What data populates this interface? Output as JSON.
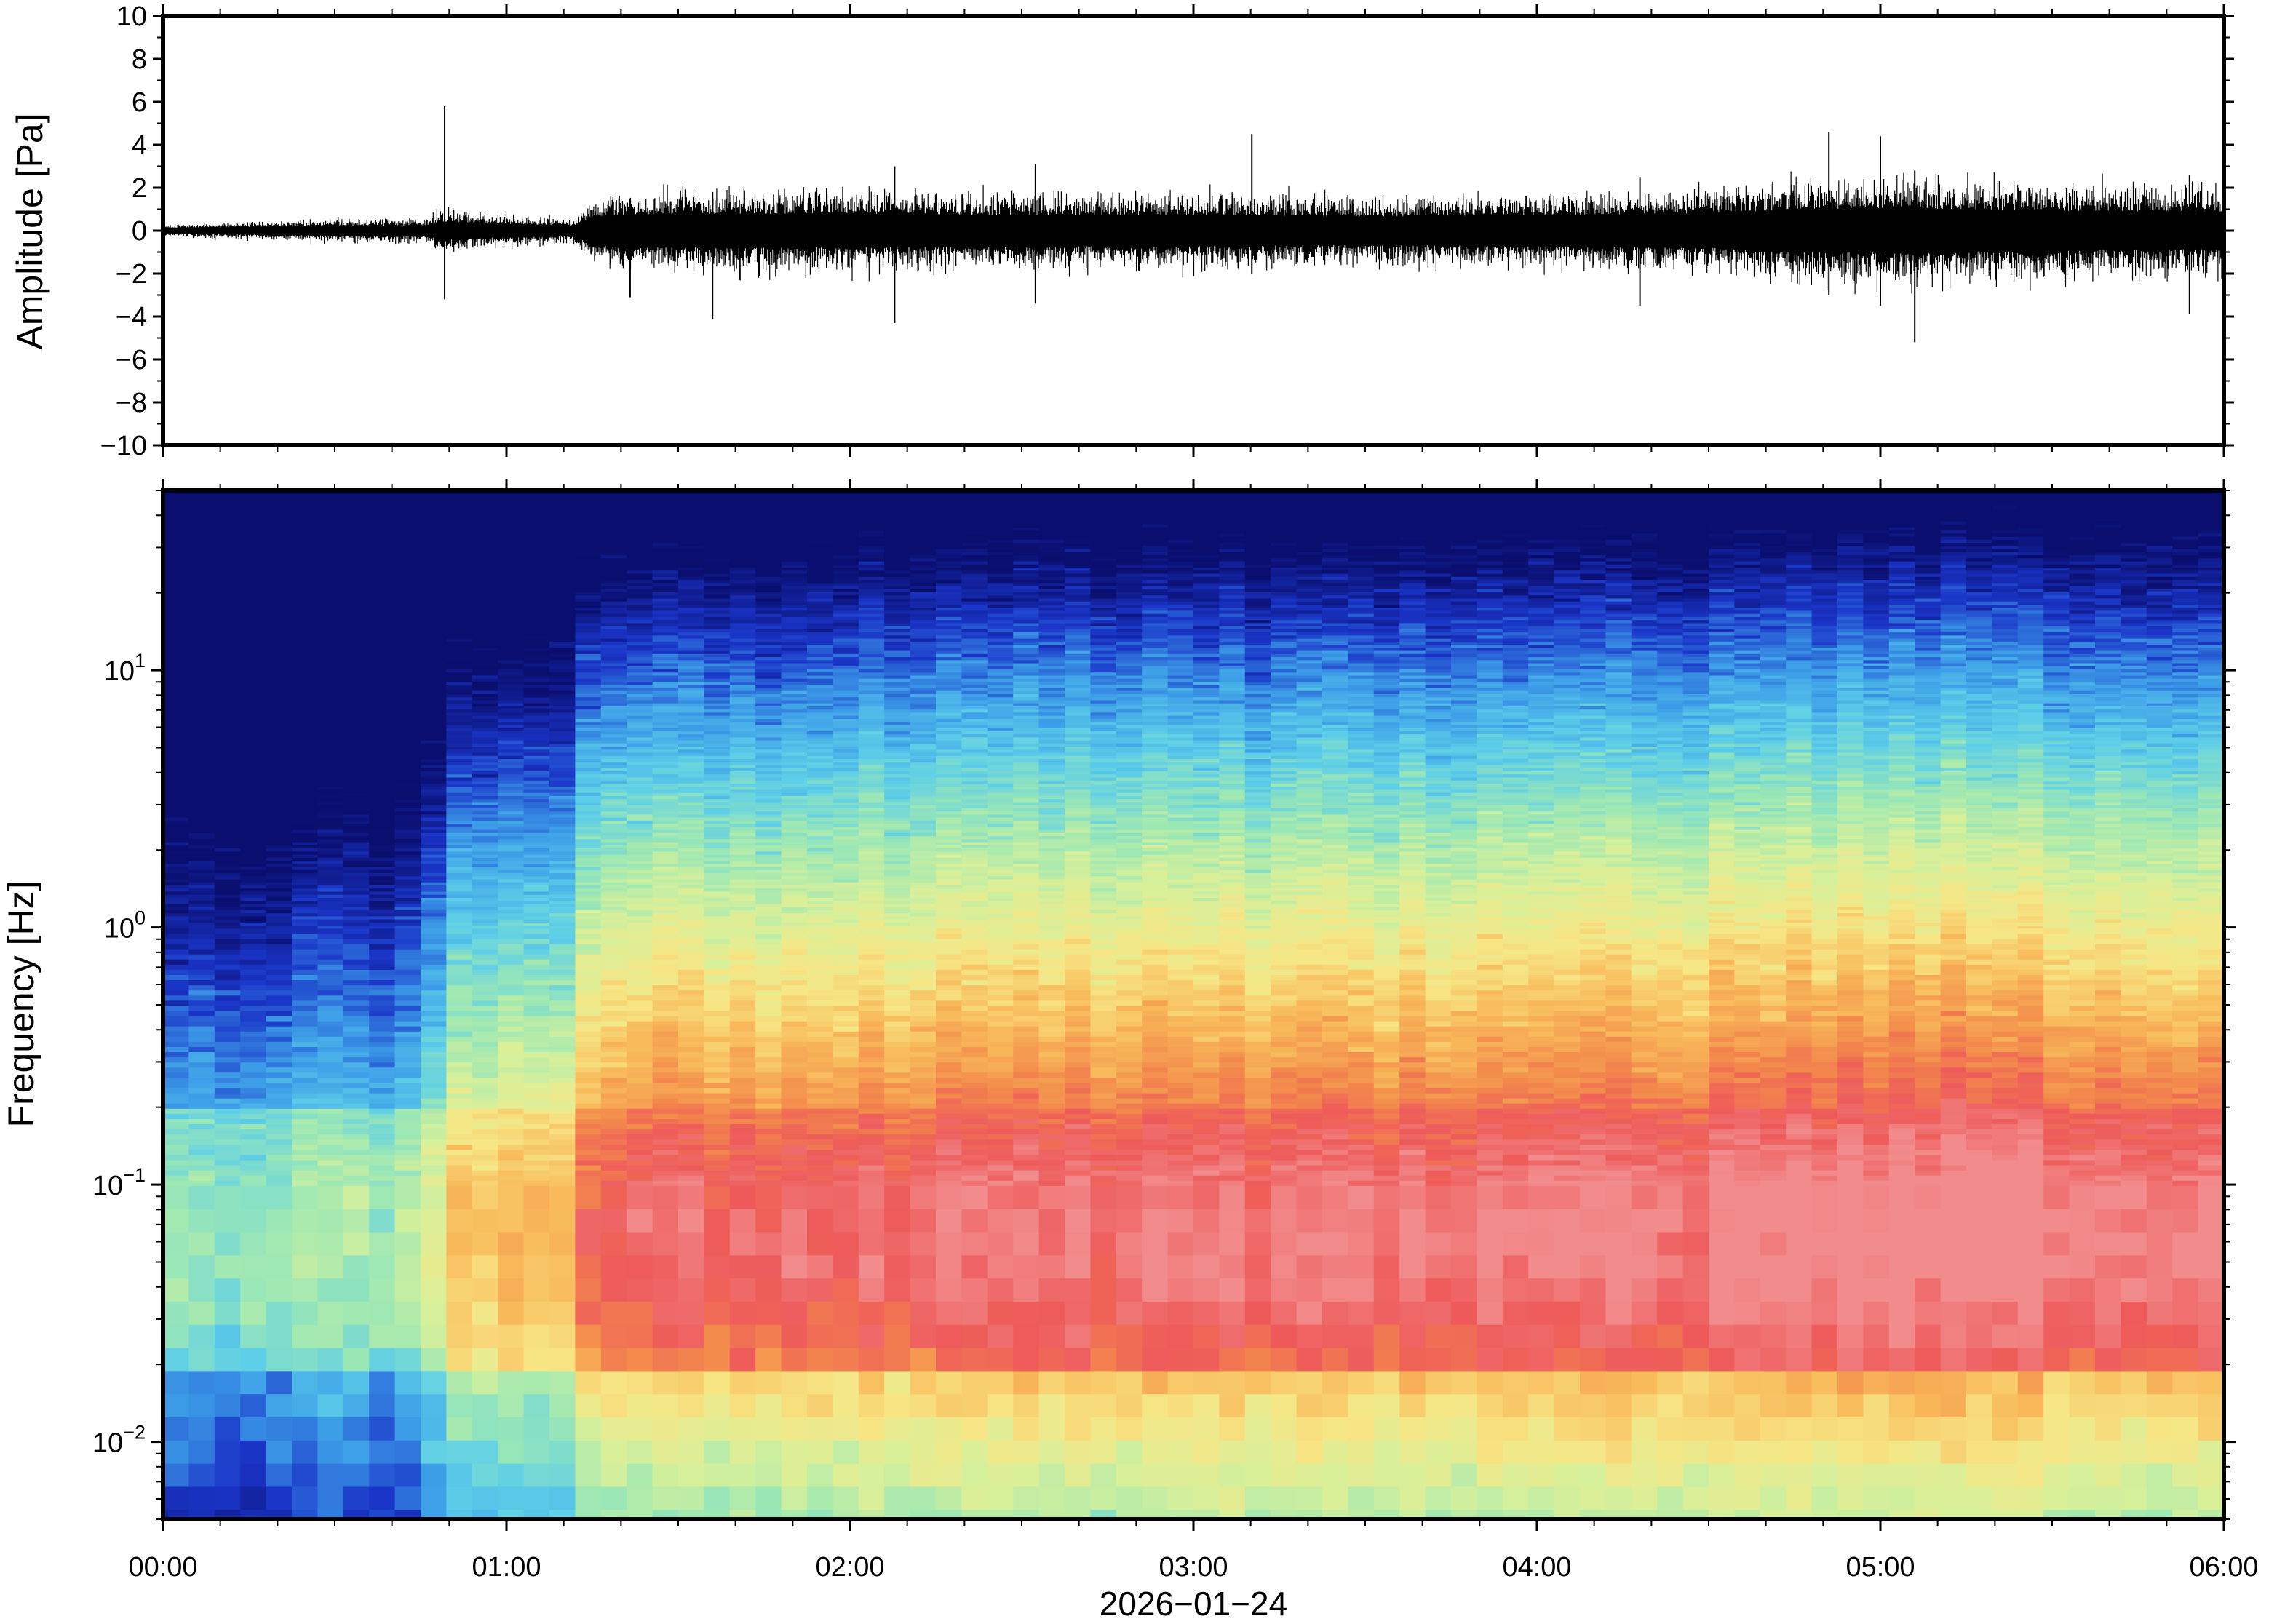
{
  "chart_data": [
    {
      "type": "line",
      "ylabel": "Amplitude [Pa]",
      "ylim": [
        -10,
        10
      ],
      "y_ticks": [
        10,
        8,
        6,
        4,
        2,
        0,
        -2,
        -4,
        -6,
        -8,
        -10
      ],
      "y_tick_labels": [
        "10",
        "8",
        "6",
        "4",
        "2",
        "0",
        "−2",
        "−4",
        "−6",
        "−8",
        "−10"
      ],
      "xlim_hours": [
        0,
        6
      ],
      "color": "#000000",
      "envelope": {
        "t_hours": [
          0.0,
          0.3,
          0.6,
          0.78,
          0.8,
          0.82,
          1.0,
          1.2,
          1.25,
          1.5,
          2.0,
          2.5,
          3.0,
          3.5,
          4.0,
          4.5,
          4.7,
          5.0,
          5.3,
          5.6,
          6.0
        ],
        "amplitude_pa": [
          0.2,
          0.3,
          0.4,
          0.4,
          0.7,
          0.7,
          0.5,
          0.4,
          1.1,
          1.3,
          1.3,
          1.2,
          1.2,
          1.1,
          1.2,
          1.3,
          1.6,
          1.7,
          1.6,
          1.5,
          1.4
        ]
      },
      "spikes": [
        {
          "t_hours": 0.82,
          "max_pa": 5.8,
          "min_pa": -3.2
        },
        {
          "t_hours": 1.36,
          "max_pa": 1.5,
          "min_pa": -3.1
        },
        {
          "t_hours": 1.6,
          "max_pa": 1.8,
          "min_pa": -4.1
        },
        {
          "t_hours": 2.13,
          "max_pa": 3.0,
          "min_pa": -4.3
        },
        {
          "t_hours": 2.54,
          "max_pa": 3.1,
          "min_pa": -3.4
        },
        {
          "t_hours": 3.17,
          "max_pa": 4.5,
          "min_pa": -2.0
        },
        {
          "t_hours": 4.3,
          "max_pa": 2.5,
          "min_pa": -3.5
        },
        {
          "t_hours": 4.85,
          "max_pa": 4.6,
          "min_pa": -3.0
        },
        {
          "t_hours": 5.0,
          "max_pa": 4.4,
          "min_pa": -3.5
        },
        {
          "t_hours": 5.1,
          "max_pa": 2.8,
          "min_pa": -5.2
        },
        {
          "t_hours": 5.9,
          "max_pa": 2.6,
          "min_pa": -3.9
        }
      ]
    },
    {
      "type": "heatmap",
      "ylabel": "Frequency [Hz]",
      "yscale": "log",
      "ylim": [
        0.005,
        50
      ],
      "y_ticks": [
        10,
        1,
        0.1,
        0.01
      ],
      "y_tick_labels": [
        {
          "base": "10",
          "exp": "1"
        },
        {
          "base": "10",
          "exp": "0"
        },
        {
          "base": "10",
          "exp": "−1"
        },
        {
          "base": "10",
          "exp": "−2"
        }
      ],
      "colormap": "spectral",
      "colormap_stops": [
        "#0a0e6e",
        "#1a35c8",
        "#3d9ee8",
        "#5ecfe8",
        "#9de8b4",
        "#d8f09a",
        "#f7e685",
        "#f8b95a",
        "#f38a4c",
        "#ee5a5a",
        "#f28c8c"
      ],
      "column_duration_min": 4.5,
      "level_profile_by_time": {
        "t_hours": [
          0.0,
          0.4,
          0.78,
          0.8,
          1.2,
          1.25,
          2.0,
          3.0,
          4.0,
          4.7,
          5.2,
          6.0
        ],
        "level": [
          0.0,
          0.1,
          0.15,
          0.55,
          0.45,
          0.85,
          0.9,
          0.92,
          0.92,
          1.0,
          1.05,
          0.95
        ]
      },
      "peak_band_hz": [
        0.02,
        0.2
      ],
      "xlim_hours": [
        0,
        6
      ],
      "x_ticks_hours": [
        0,
        1,
        2,
        3,
        4,
        5,
        6
      ],
      "x_tick_labels": [
        "00:00",
        "01:00",
        "02:00",
        "03:00",
        "04:00",
        "05:00",
        "06:00"
      ],
      "xlabel": "2026−01−24"
    }
  ]
}
